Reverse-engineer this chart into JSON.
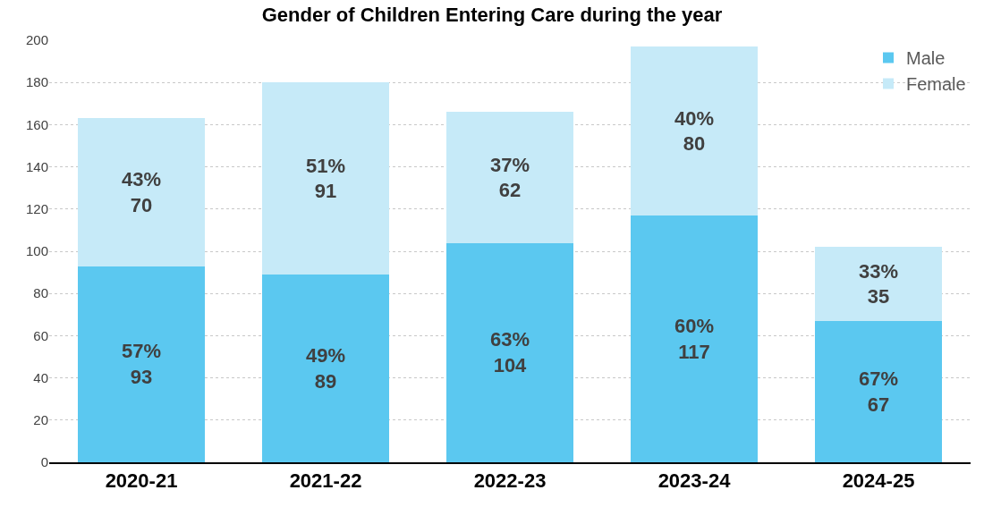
{
  "chart_data": {
    "type": "bar",
    "title": "Gender of Children Entering Care during the year",
    "categories": [
      "2020-21",
      "2021-22",
      "2022-23",
      "2023-24",
      "2024-25"
    ],
    "stacked": true,
    "series": [
      {
        "name": "Male",
        "color": "#5bc8f0",
        "values": [
          93,
          89,
          104,
          117,
          67
        ],
        "value_labels": [
          "57%\n93",
          "49%\n89",
          "63%\n104",
          "60%\n117",
          "67%\n67"
        ]
      },
      {
        "name": "Female",
        "color": "#c6eaf8",
        "values": [
          70,
          91,
          62,
          80,
          35
        ],
        "value_labels": [
          "43%\n70",
          "51%\n91",
          "37%\n62",
          "40%\n80",
          "33%\n35"
        ]
      }
    ],
    "ylim": [
      0,
      200
    ],
    "yticks": [
      0,
      20,
      40,
      60,
      80,
      100,
      120,
      140,
      160,
      180,
      200
    ],
    "grid": "y",
    "legend": "top right"
  }
}
